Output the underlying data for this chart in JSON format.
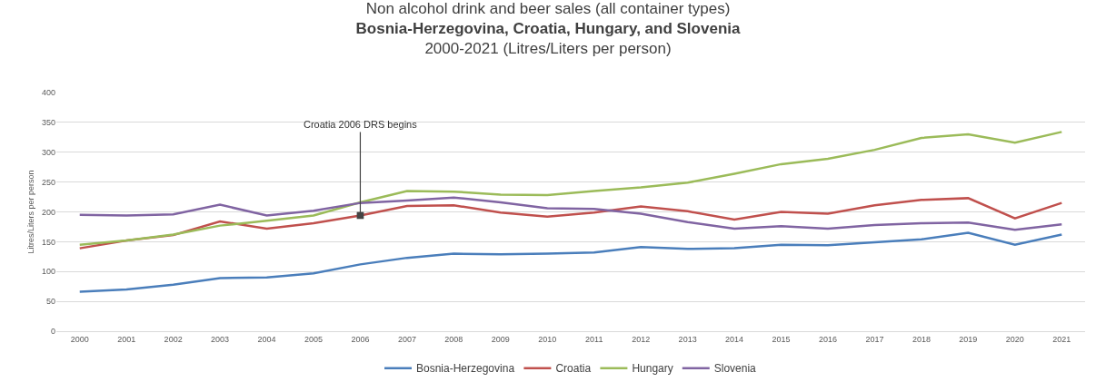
{
  "chart_data": {
    "type": "line",
    "title": "Non alcohol drink and beer sales (all container types)",
    "subtitle": "Bosnia-Herzegovina, Croatia, Hungary, and Slovenia\n2000-2021 (Litres/Liters per person)",
    "ylabel": "Litres/Liters per person",
    "categories": [
      "2000",
      "2001",
      "2002",
      "2003",
      "2004",
      "2005",
      "2006",
      "2007",
      "2008",
      "2009",
      "2010",
      "2011",
      "2012",
      "2013",
      "2014",
      "2015",
      "2016",
      "2017",
      "2018",
      "2019",
      "2020",
      "2021"
    ],
    "series": [
      {
        "name": "Bosnia-Herzegovina",
        "color": "#4a7ebb",
        "values": [
          66,
          70,
          78,
          89,
          90,
          97,
          112,
          123,
          130,
          129,
          130,
          132,
          141,
          138,
          139,
          145,
          144,
          149,
          154,
          165,
          145,
          162
        ]
      },
      {
        "name": "Croatia",
        "color": "#c0504d",
        "values": [
          139,
          152,
          161,
          184,
          172,
          181,
          194,
          210,
          211,
          199,
          192,
          199,
          209,
          201,
          187,
          200,
          197,
          211,
          220,
          223,
          189,
          215
        ]
      },
      {
        "name": "Hungary",
        "color": "#9bbb59",
        "values": [
          145,
          152,
          162,
          177,
          185,
          194,
          216,
          235,
          234,
          229,
          228,
          235,
          241,
          249,
          264,
          280,
          289,
          304,
          324,
          330,
          316,
          334
        ]
      },
      {
        "name": "Slovenia",
        "color": "#8064a2",
        "values": [
          195,
          194,
          196,
          212,
          194,
          202,
          215,
          219,
          224,
          216,
          206,
          205,
          197,
          183,
          172,
          176,
          172,
          178,
          181,
          182,
          170,
          179
        ]
      }
    ],
    "annotations": [
      {
        "text": "Croatia 2006 DRS begins",
        "x": "2006",
        "y": 194
      }
    ],
    "ylim": [
      0,
      400
    ],
    "yticks": [
      0,
      50,
      100,
      150,
      200,
      250,
      300,
      350,
      400
    ],
    "grid": "y",
    "legend": "bottom",
    "marker": "none",
    "line_style": "solid"
  }
}
